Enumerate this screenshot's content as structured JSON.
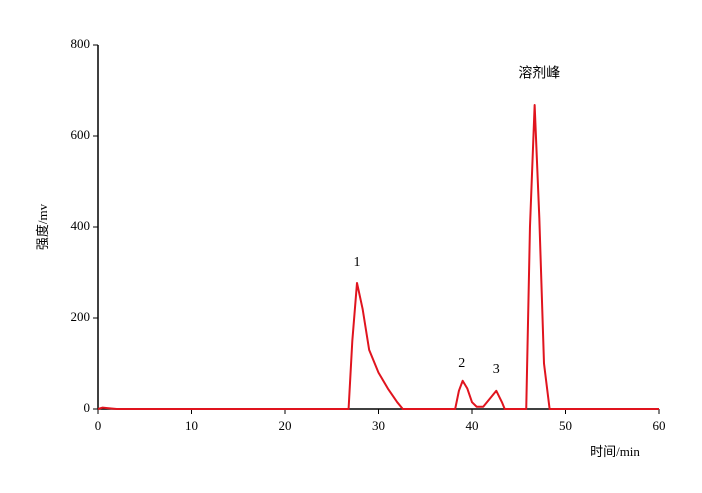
{
  "chart_data": {
    "type": "line",
    "x_label": "时间/min",
    "y_label": "强度/mv",
    "xlim": [
      0,
      60
    ],
    "xticks": [
      0,
      10,
      20,
      30,
      40,
      50,
      60
    ],
    "ylim": [
      0,
      800
    ],
    "yticks": [
      0,
      200,
      400,
      600,
      800
    ],
    "grid": false,
    "series": [
      {
        "color": "#e0141e",
        "x": [
          0,
          0.5,
          1,
          2,
          3,
          26.8,
          27.2,
          27.7,
          28.3,
          29,
          30,
          31,
          32,
          32.6,
          38.2,
          38.6,
          39.0,
          39.5,
          40,
          40.5,
          41.2,
          42,
          42.6,
          43.2,
          43.5,
          45.8,
          46.2,
          46.7,
          47.2,
          47.7,
          48.3,
          60
        ],
        "values": [
          0,
          3,
          2,
          0,
          0,
          0,
          150,
          277,
          220,
          130,
          80,
          45,
          15,
          0,
          0,
          40,
          62,
          45,
          15,
          5,
          5,
          25,
          40,
          15,
          0,
          0,
          400,
          668,
          420,
          100,
          0,
          0
        ]
      }
    ],
    "annotations": [
      {
        "text": "1",
        "x": 27.7,
        "y": 321
      },
      {
        "text": "2",
        "x": 38.9,
        "y": 99
      },
      {
        "text": "3",
        "x": 42.6,
        "y": 86
      },
      {
        "text": "溶剂峰",
        "x": 47.2,
        "y": 736
      }
    ]
  }
}
